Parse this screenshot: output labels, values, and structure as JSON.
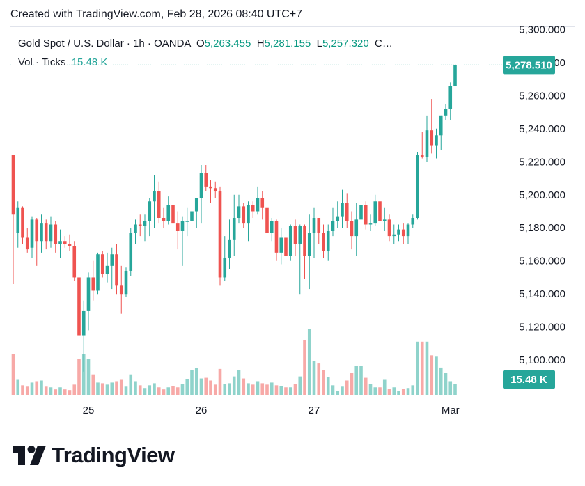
{
  "caption": "Created with TradingView.com, Feb 28, 2026 08:40 UTC+7",
  "legend": {
    "symbol": "Gold Spot / U.S. Dollar · 1h · OANDA",
    "o_label": "O",
    "o_value": "5,263.455",
    "h_label": "H",
    "h_value": "5,281.155",
    "l_label": "L",
    "l_value": "5,257.320",
    "c_label": "C…",
    "vol_label": "Vol · Ticks",
    "vol_value": "15.48 K"
  },
  "brand": {
    "name": "TradingView"
  },
  "colors": {
    "up": "#26a69a",
    "down": "#ef5350",
    "up_vol": "#8fd3cb",
    "down_vol": "#f7a9a7",
    "axis_text": "#131722"
  },
  "chart_data": {
    "type": "candlestick",
    "x_ticks": [
      {
        "label": "25",
        "index": 16
      },
      {
        "label": "26",
        "index": 40
      },
      {
        "label": "27",
        "index": 64
      },
      {
        "label": "Mar",
        "index": 93
      }
    ],
    "y_ticks": [
      "5,300.000",
      "5,280.000",
      "5,260.000",
      "5,240.000",
      "5,220.000",
      "5,200.000",
      "5,180.000",
      "5,160.000",
      "5,140.000",
      "5,120.000",
      "5,100.000"
    ],
    "y_tick_values": [
      5300,
      5280,
      5260,
      5240,
      5220,
      5200,
      5180,
      5160,
      5140,
      5120,
      5100
    ],
    "ylim": [
      5079,
      5301
    ],
    "last_price": {
      "value": 5278.51,
      "label": "5,278.510"
    },
    "last_volume": {
      "value": 15.48,
      "label": "15.48 K"
    },
    "volume_max": 130,
    "candles": [
      {
        "o": 5224,
        "h": 5224,
        "l": 5146,
        "c": 5188,
        "v": 60
      },
      {
        "o": 5177,
        "h": 5196,
        "l": 5168,
        "c": 5192,
        "v": 22
      },
      {
        "o": 5192,
        "h": 5193,
        "l": 5170,
        "c": 5174,
        "v": 14
      },
      {
        "o": 5174,
        "h": 5180,
        "l": 5165,
        "c": 5167,
        "v": 12
      },
      {
        "o": 5168,
        "h": 5187,
        "l": 5162,
        "c": 5185,
        "v": 18
      },
      {
        "o": 5185,
        "h": 5186,
        "l": 5157,
        "c": 5172,
        "v": 20
      },
      {
        "o": 5172,
        "h": 5188,
        "l": 5165,
        "c": 5183,
        "v": 21
      },
      {
        "o": 5183,
        "h": 5185,
        "l": 5167,
        "c": 5172,
        "v": 12
      },
      {
        "o": 5172,
        "h": 5187,
        "l": 5168,
        "c": 5182,
        "v": 11
      },
      {
        "o": 5182,
        "h": 5184,
        "l": 5165,
        "c": 5170,
        "v": 8
      },
      {
        "o": 5170,
        "h": 5179,
        "l": 5162,
        "c": 5172,
        "v": 11
      },
      {
        "o": 5172,
        "h": 5175,
        "l": 5168,
        "c": 5170,
        "v": 8
      },
      {
        "o": 5170,
        "h": 5176,
        "l": 5166,
        "c": 5169,
        "v": 7
      },
      {
        "o": 5169,
        "h": 5172,
        "l": 5148,
        "c": 5150,
        "v": 15
      },
      {
        "o": 5150,
        "h": 5151,
        "l": 5113,
        "c": 5115,
        "v": 53
      },
      {
        "o": 5115,
        "h": 5136,
        "l": 5093,
        "c": 5130,
        "v": 60
      },
      {
        "o": 5130,
        "h": 5153,
        "l": 5118,
        "c": 5150,
        "v": 53
      },
      {
        "o": 5150,
        "h": 5160,
        "l": 5136,
        "c": 5142,
        "v": 30
      },
      {
        "o": 5142,
        "h": 5165,
        "l": 5140,
        "c": 5164,
        "v": 18
      },
      {
        "o": 5164,
        "h": 5166,
        "l": 5150,
        "c": 5152,
        "v": 17
      },
      {
        "o": 5152,
        "h": 5165,
        "l": 5147,
        "c": 5157,
        "v": 15
      },
      {
        "o": 5157,
        "h": 5168,
        "l": 5143,
        "c": 5164,
        "v": 18
      },
      {
        "o": 5164,
        "h": 5170,
        "l": 5140,
        "c": 5145,
        "v": 20
      },
      {
        "o": 5145,
        "h": 5157,
        "l": 5128,
        "c": 5140,
        "v": 22
      },
      {
        "o": 5140,
        "h": 5156,
        "l": 5138,
        "c": 5154,
        "v": 12
      },
      {
        "o": 5154,
        "h": 5180,
        "l": 5151,
        "c": 5177,
        "v": 30
      },
      {
        "o": 5177,
        "h": 5185,
        "l": 5170,
        "c": 5182,
        "v": 20
      },
      {
        "o": 5182,
        "h": 5188,
        "l": 5175,
        "c": 5181,
        "v": 14
      },
      {
        "o": 5181,
        "h": 5188,
        "l": 5172,
        "c": 5184,
        "v": 10
      },
      {
        "o": 5184,
        "h": 5198,
        "l": 5175,
        "c": 5196,
        "v": 14
      },
      {
        "o": 5196,
        "h": 5212,
        "l": 5180,
        "c": 5202,
        "v": 17
      },
      {
        "o": 5202,
        "h": 5208,
        "l": 5183,
        "c": 5186,
        "v": 11
      },
      {
        "o": 5186,
        "h": 5192,
        "l": 5180,
        "c": 5184,
        "v": 8
      },
      {
        "o": 5184,
        "h": 5199,
        "l": 5182,
        "c": 5194,
        "v": 11
      },
      {
        "o": 5194,
        "h": 5197,
        "l": 5180,
        "c": 5183,
        "v": 13
      },
      {
        "o": 5183,
        "h": 5190,
        "l": 5167,
        "c": 5178,
        "v": 11
      },
      {
        "o": 5178,
        "h": 5187,
        "l": 5157,
        "c": 5184,
        "v": 16
      },
      {
        "o": 5184,
        "h": 5192,
        "l": 5175,
        "c": 5184,
        "v": 23
      },
      {
        "o": 5184,
        "h": 5193,
        "l": 5170,
        "c": 5190,
        "v": 36
      },
      {
        "o": 5190,
        "h": 5197,
        "l": 5180,
        "c": 5198,
        "v": 39
      },
      {
        "o": 5198,
        "h": 5218,
        "l": 5183,
        "c": 5213,
        "v": 24
      },
      {
        "o": 5213,
        "h": 5218,
        "l": 5202,
        "c": 5205,
        "v": 25
      },
      {
        "o": 5205,
        "h": 5209,
        "l": 5195,
        "c": 5204,
        "v": 21
      },
      {
        "o": 5204,
        "h": 5208,
        "l": 5198,
        "c": 5202,
        "v": 15
      },
      {
        "o": 5202,
        "h": 5205,
        "l": 5145,
        "c": 5150,
        "v": 38
      },
      {
        "o": 5150,
        "h": 5175,
        "l": 5148,
        "c": 5162,
        "v": 16
      },
      {
        "o": 5162,
        "h": 5185,
        "l": 5155,
        "c": 5173,
        "v": 17
      },
      {
        "o": 5173,
        "h": 5200,
        "l": 5163,
        "c": 5186,
        "v": 27
      },
      {
        "o": 5186,
        "h": 5200,
        "l": 5183,
        "c": 5193,
        "v": 36
      },
      {
        "o": 5193,
        "h": 5195,
        "l": 5180,
        "c": 5183,
        "v": 24
      },
      {
        "o": 5183,
        "h": 5196,
        "l": 5172,
        "c": 5194,
        "v": 17
      },
      {
        "o": 5194,
        "h": 5196,
        "l": 5186,
        "c": 5190,
        "v": 15
      },
      {
        "o": 5190,
        "h": 5205,
        "l": 5188,
        "c": 5198,
        "v": 20
      },
      {
        "o": 5198,
        "h": 5202,
        "l": 5185,
        "c": 5192,
        "v": 17
      },
      {
        "o": 5192,
        "h": 5193,
        "l": 5167,
        "c": 5177,
        "v": 15
      },
      {
        "o": 5177,
        "h": 5186,
        "l": 5172,
        "c": 5184,
        "v": 18
      },
      {
        "o": 5184,
        "h": 5185,
        "l": 5160,
        "c": 5165,
        "v": 14
      },
      {
        "o": 5165,
        "h": 5180,
        "l": 5158,
        "c": 5174,
        "v": 13
      },
      {
        "o": 5174,
        "h": 5176,
        "l": 5163,
        "c": 5163,
        "v": 11
      },
      {
        "o": 5163,
        "h": 5182,
        "l": 5160,
        "c": 5181,
        "v": 11
      },
      {
        "o": 5181,
        "h": 5185,
        "l": 5163,
        "c": 5170,
        "v": 16
      },
      {
        "o": 5170,
        "h": 5182,
        "l": 5140,
        "c": 5181,
        "v": 27
      },
      {
        "o": 5181,
        "h": 5182,
        "l": 5149,
        "c": 5163,
        "v": 80
      },
      {
        "o": 5163,
        "h": 5188,
        "l": 5143,
        "c": 5177,
        "v": 97
      },
      {
        "o": 5177,
        "h": 5192,
        "l": 5162,
        "c": 5186,
        "v": 50
      },
      {
        "o": 5186,
        "h": 5186,
        "l": 5170,
        "c": 5177,
        "v": 46
      },
      {
        "o": 5177,
        "h": 5182,
        "l": 5162,
        "c": 5166,
        "v": 36
      },
      {
        "o": 5166,
        "h": 5182,
        "l": 5160,
        "c": 5178,
        "v": 26
      },
      {
        "o": 5178,
        "h": 5192,
        "l": 5175,
        "c": 5184,
        "v": 14
      },
      {
        "o": 5184,
        "h": 5196,
        "l": 5180,
        "c": 5187,
        "v": 6
      },
      {
        "o": 5187,
        "h": 5203,
        "l": 5180,
        "c": 5195,
        "v": 12
      },
      {
        "o": 5195,
        "h": 5201,
        "l": 5180,
        "c": 5184,
        "v": 21
      },
      {
        "o": 5184,
        "h": 5190,
        "l": 5167,
        "c": 5175,
        "v": 32
      },
      {
        "o": 5175,
        "h": 5195,
        "l": 5163,
        "c": 5185,
        "v": 43
      },
      {
        "o": 5185,
        "h": 5196,
        "l": 5175,
        "c": 5194,
        "v": 42
      },
      {
        "o": 5194,
        "h": 5196,
        "l": 5179,
        "c": 5182,
        "v": 25
      },
      {
        "o": 5182,
        "h": 5188,
        "l": 5178,
        "c": 5183,
        "v": 16
      },
      {
        "o": 5183,
        "h": 5200,
        "l": 5181,
        "c": 5196,
        "v": 11
      },
      {
        "o": 5196,
        "h": 5198,
        "l": 5180,
        "c": 5184,
        "v": 11
      },
      {
        "o": 5184,
        "h": 5192,
        "l": 5178,
        "c": 5185,
        "v": 22
      },
      {
        "o": 5185,
        "h": 5188,
        "l": 5172,
        "c": 5175,
        "v": 9
      },
      {
        "o": 5175,
        "h": 5182,
        "l": 5170,
        "c": 5176,
        "v": 11
      },
      {
        "o": 5176,
        "h": 5182,
        "l": 5172,
        "c": 5179,
        "v": 6
      },
      {
        "o": 5179,
        "h": 5183,
        "l": 5170,
        "c": 5175,
        "v": 9
      },
      {
        "o": 5175,
        "h": 5183,
        "l": 5170,
        "c": 5182,
        "v": 10
      },
      {
        "o": 5182,
        "h": 5188,
        "l": 5180,
        "c": 5186,
        "v": 14
      },
      {
        "o": 5186,
        "h": 5226,
        "l": 5185,
        "c": 5224,
        "v": 78
      },
      {
        "o": 5224,
        "h": 5238,
        "l": 5222,
        "c": 5223,
        "v": 78
      },
      {
        "o": 5223,
        "h": 5248,
        "l": 5220,
        "c": 5239,
        "v": 78
      },
      {
        "o": 5239,
        "h": 5258,
        "l": 5225,
        "c": 5230,
        "v": 58
      },
      {
        "o": 5230,
        "h": 5240,
        "l": 5222,
        "c": 5236,
        "v": 56
      },
      {
        "o": 5236,
        "h": 5248,
        "l": 5227,
        "c": 5248,
        "v": 40
      },
      {
        "o": 5248,
        "h": 5255,
        "l": 5245,
        "c": 5252,
        "v": 32
      },
      {
        "o": 5252,
        "h": 5268,
        "l": 5245,
        "c": 5266,
        "v": 20
      },
      {
        "o": 5266,
        "h": 5281,
        "l": 5257,
        "c": 5278.5,
        "v": 15.48
      }
    ]
  }
}
